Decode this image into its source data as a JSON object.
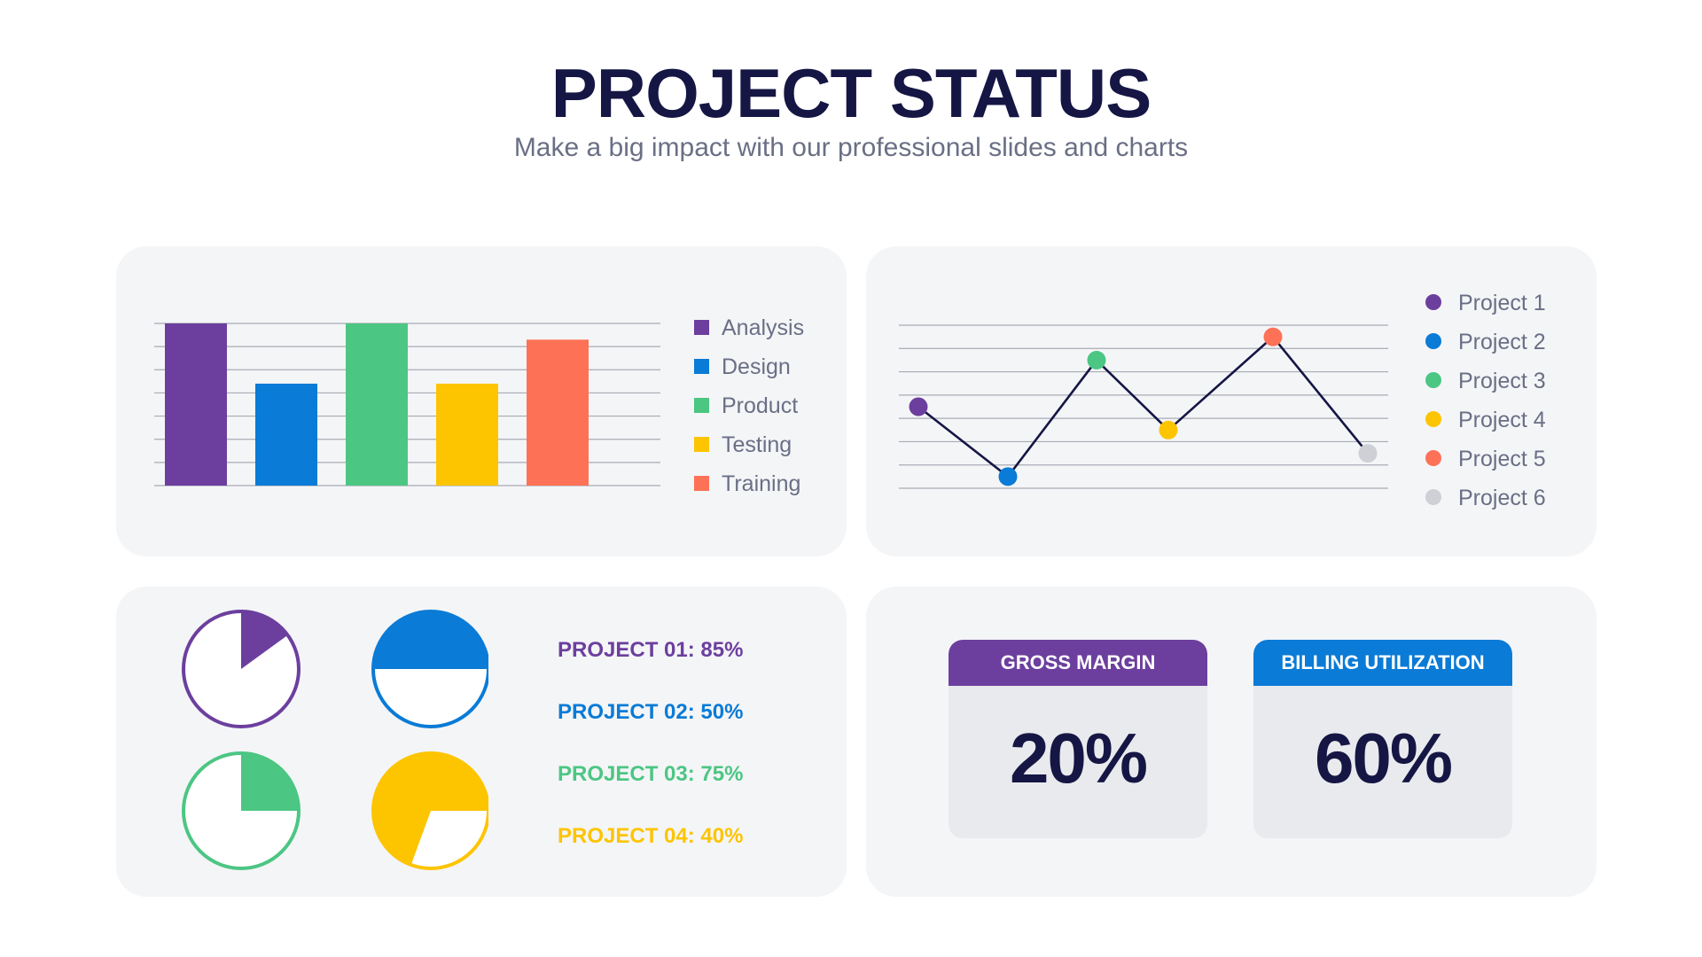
{
  "header": {
    "title": "PROJECT STATUS",
    "subtitle": "Make a big impact with our professional slides and charts"
  },
  "colors": {
    "purple": "#6c3f9e",
    "blue": "#0a7bd6",
    "green": "#4cc683",
    "yellow": "#fdc400",
    "orange": "#fd7257",
    "gray": "#cfd0d6",
    "navy": "#151644"
  },
  "chart_data": [
    {
      "type": "bar",
      "categories": [
        "Analysis",
        "Design",
        "Product",
        "Testing",
        "Training"
      ],
      "values": [
        7,
        4.4,
        7,
        4.4,
        6.3
      ],
      "ylim": [
        0,
        7
      ],
      "grid": true,
      "legend": "right",
      "colors": [
        "#6c3f9e",
        "#0a7bd6",
        "#4cc683",
        "#fdc400",
        "#fd7257"
      ]
    },
    {
      "type": "line",
      "categories": [
        "Project 1",
        "Project 2",
        "Project 3",
        "Project 4",
        "Project 5",
        "Project 6"
      ],
      "values": [
        3.5,
        0.5,
        5.5,
        2.5,
        6.5,
        1.5
      ],
      "ylim": [
        0,
        7
      ],
      "grid": true,
      "legend": "right",
      "colors": [
        "#6c3f9e",
        "#0a7bd6",
        "#4cc683",
        "#fdc400",
        "#fd7257",
        "#cfd0d6"
      ]
    },
    {
      "type": "pie",
      "items": [
        {
          "label": "PROJECT 01: 85%",
          "value": 85,
          "filled_fraction": 0.15,
          "fill_mode": "wedge",
          "color": "#6c3f9e"
        },
        {
          "label": "PROJECT 02: 50%",
          "value": 50,
          "filled_fraction": 0.5,
          "fill_mode": "top-half",
          "color": "#0a7bd6"
        },
        {
          "label": "PROJECT 03: 75%",
          "value": 75,
          "filled_fraction": 0.25,
          "fill_mode": "wedge",
          "color": "#4cc683"
        },
        {
          "label": "PROJECT 04: 40%",
          "value": 40,
          "filled_fraction": 0.6,
          "fill_mode": "wedge-remainder",
          "color": "#fdc400"
        }
      ]
    }
  ],
  "kpis": [
    {
      "label": "GROSS MARGIN",
      "value": "20%",
      "color": "#6c3f9e"
    },
    {
      "label": "BILLING UTILIZATION",
      "value": "60%",
      "color": "#0a7bd6"
    }
  ]
}
